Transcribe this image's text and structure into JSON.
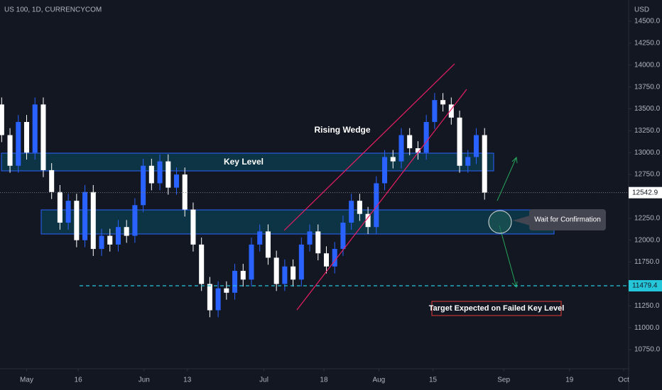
{
  "chart_data": {
    "type": "candlestick",
    "title": "US 100, 1D, CURRENCYCOM",
    "currency": "USD",
    "open": [
      13550,
      13200,
      12850,
      13350,
      13000,
      13550,
      12800,
      12550,
      12200,
      12450,
      12000,
      12550,
      11900,
      12050,
      11950,
      12150,
      12050,
      12400,
      12850,
      12650,
      12900,
      12600,
      12750,
      12350,
      11950,
      11500,
      11200,
      11450,
      11400,
      11650,
      11550,
      11950,
      12100,
      11800,
      11500,
      11700,
      11550,
      11950,
      12100,
      11850,
      11700,
      11900,
      12200,
      12450,
      12300,
      12150,
      12650,
      12950,
      12900,
      13200,
      13050,
      13000,
      13350,
      13600,
      13550,
      13400,
      12850,
      12950,
      13200
    ],
    "high": [
      13630,
      13280,
      13430,
      13430,
      13630,
      13630,
      12880,
      12630,
      12530,
      12530,
      12630,
      12630,
      12130,
      12130,
      12230,
      12230,
      12480,
      12930,
      12930,
      12980,
      12980,
      12830,
      12830,
      12430,
      12030,
      11580,
      11530,
      11530,
      11730,
      11730,
      12030,
      12180,
      12180,
      11880,
      11780,
      11780,
      12030,
      12180,
      12180,
      11930,
      11980,
      12280,
      12530,
      12530,
      12380,
      12730,
      13030,
      13030,
      13280,
      13280,
      13130,
      13430,
      13680,
      13680,
      13630,
      13480,
      13030,
      13280,
      13280
    ],
    "low": [
      13120,
      12770,
      12770,
      12920,
      12920,
      12720,
      12470,
      12120,
      12120,
      11920,
      11920,
      11820,
      11820,
      11870,
      11870,
      11970,
      11970,
      12320,
      12570,
      12570,
      12520,
      12520,
      12270,
      11870,
      11420,
      11120,
      11120,
      11320,
      11320,
      11470,
      11470,
      11870,
      11720,
      11420,
      11420,
      11470,
      11470,
      11870,
      11770,
      11620,
      11620,
      11820,
      12120,
      12220,
      12070,
      12070,
      12570,
      12820,
      12820,
      12970,
      12920,
      12920,
      13270,
      13470,
      13320,
      12770,
      12770,
      12870,
      12463
    ],
    "close": [
      13200,
      12850,
      13350,
      13000,
      13550,
      12800,
      12550,
      12200,
      12450,
      12000,
      12550,
      11900,
      12050,
      11950,
      12150,
      12050,
      12400,
      12850,
      12650,
      12900,
      12600,
      12750,
      12350,
      11950,
      11500,
      11200,
      11450,
      11400,
      11650,
      11550,
      11950,
      12100,
      11800,
      11500,
      11700,
      11550,
      11950,
      12100,
      11850,
      11700,
      11900,
      12200,
      12450,
      12300,
      12150,
      12650,
      12950,
      12900,
      13200,
      13050,
      13000,
      13350,
      13600,
      13550,
      13400,
      12850,
      12950,
      13200,
      12543
    ],
    "up_color": "#2962ff",
    "down_color": "#ffffff",
    "xlim": [
      -0.2,
      75.3
    ],
    "xticks": [
      {
        "value": 3.0,
        "label": "May"
      },
      {
        "value": 9.2,
        "label": "16"
      },
      {
        "value": 17.1,
        "label": "Jun"
      },
      {
        "value": 22.3,
        "label": "13"
      },
      {
        "value": 31.5,
        "label": "Jul"
      },
      {
        "value": 38.7,
        "label": "18"
      },
      {
        "value": 45.3,
        "label": "Aug"
      },
      {
        "value": 51.8,
        "label": "15"
      },
      {
        "value": 60.3,
        "label": "Sep"
      },
      {
        "value": 68.2,
        "label": "19"
      },
      {
        "value": 74.7,
        "label": "Oct"
      }
    ],
    "ylim": [
      10532,
      14743
    ],
    "yticks": [
      {
        "value": 10750,
        "label": "10750.0"
      },
      {
        "value": 11000,
        "label": "11000.0"
      },
      {
        "value": 11250,
        "label": "11250.0"
      },
      {
        "value": 11500,
        "label": "11500.0"
      },
      {
        "value": 11750,
        "label": "11750.0"
      },
      {
        "value": 12000,
        "label": "12000.0"
      },
      {
        "value": 12250,
        "label": "12250.0"
      },
      {
        "value": 12500,
        "label": "12500.0"
      },
      {
        "value": 12750,
        "label": "12750.0"
      },
      {
        "value": 13000,
        "label": "13000.0"
      },
      {
        "value": 13250,
        "label": "13250.0"
      },
      {
        "value": 13500,
        "label": "13500.0"
      },
      {
        "value": 13750,
        "label": "13750.0"
      },
      {
        "value": 14000,
        "label": "14000.0"
      },
      {
        "value": 14250,
        "label": "14250.0"
      },
      {
        "value": 14500,
        "label": "14500.0"
      }
    ],
    "last_price": 12542.9,
    "target_price": 11479.4,
    "annotations": {
      "key_level": "Key Level",
      "wedge": "Rising Wedge",
      "wait": "Wait for Confirmation",
      "target": "Target Expected on Failed Key Level"
    }
  }
}
